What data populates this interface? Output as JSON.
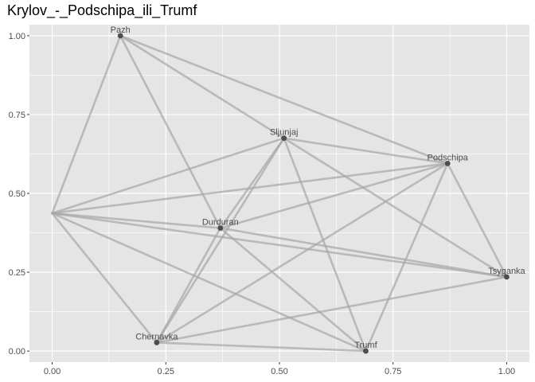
{
  "chart_data": {
    "type": "network",
    "title": "Krylov_-_Podschipa_ili_Trumf",
    "xlabel": "",
    "ylabel": "",
    "xlim": [
      -0.05,
      1.05
    ],
    "ylim": [
      -0.035,
      1.035
    ],
    "x_ticks": [
      0.0,
      0.25,
      0.5,
      0.75,
      1.0
    ],
    "x_tick_labels": [
      "0.00",
      "0.25",
      "0.50",
      "0.75",
      "1.00"
    ],
    "y_ticks": [
      0.0,
      0.25,
      0.5,
      0.75,
      1.0
    ],
    "y_tick_labels": [
      "0.00",
      "0.25",
      "0.50",
      "0.75",
      "1.00"
    ],
    "grid": true,
    "colors": {
      "panel_background": "#e5e5e5",
      "grid": "#ffffff",
      "edge": "#a6a6a6",
      "node": "#4d4d4d",
      "label": "#4d4d4d"
    },
    "nodes": [
      {
        "id": "pazh",
        "label": "Pazh",
        "x": 0.15,
        "y": 1.0
      },
      {
        "id": "sljunjaj",
        "label": "Sljunjaj",
        "x": 0.51,
        "y": 0.675
      },
      {
        "id": "podschipa",
        "label": "Podschipa",
        "x": 0.87,
        "y": 0.595
      },
      {
        "id": "durduran",
        "label": "Durduran",
        "x": 0.37,
        "y": 0.39
      },
      {
        "id": "tsyganka",
        "label": "Tsyganka",
        "x": 1.0,
        "y": 0.235
      },
      {
        "id": "chernavka",
        "label": "Chernavka",
        "x": 0.23,
        "y": 0.027
      },
      {
        "id": "trumf",
        "label": "Trumf",
        "x": 0.69,
        "y": 0.0
      },
      {
        "id": "unlabeled",
        "label": "",
        "x": 0.0,
        "y": 0.437
      }
    ],
    "edges": [
      [
        "unlabeled",
        "pazh"
      ],
      [
        "unlabeled",
        "sljunjaj"
      ],
      [
        "unlabeled",
        "podschipa"
      ],
      [
        "unlabeled",
        "durduran"
      ],
      [
        "unlabeled",
        "tsyganka"
      ],
      [
        "unlabeled",
        "chernavka"
      ],
      [
        "unlabeled",
        "trumf"
      ],
      [
        "pazh",
        "sljunjaj"
      ],
      [
        "pazh",
        "podschipa"
      ],
      [
        "pazh",
        "durduran"
      ],
      [
        "sljunjaj",
        "podschipa"
      ],
      [
        "sljunjaj",
        "durduran"
      ],
      [
        "sljunjaj",
        "chernavka"
      ],
      [
        "sljunjaj",
        "trumf"
      ],
      [
        "sljunjaj",
        "tsyganka"
      ],
      [
        "podschipa",
        "durduran"
      ],
      [
        "podschipa",
        "chernavka"
      ],
      [
        "podschipa",
        "trumf"
      ],
      [
        "podschipa",
        "tsyganka"
      ],
      [
        "durduran",
        "tsyganka"
      ],
      [
        "durduran",
        "trumf"
      ],
      [
        "durduran",
        "chernavka"
      ],
      [
        "chernavka",
        "trumf"
      ],
      [
        "chernavka",
        "tsyganka"
      ]
    ]
  }
}
